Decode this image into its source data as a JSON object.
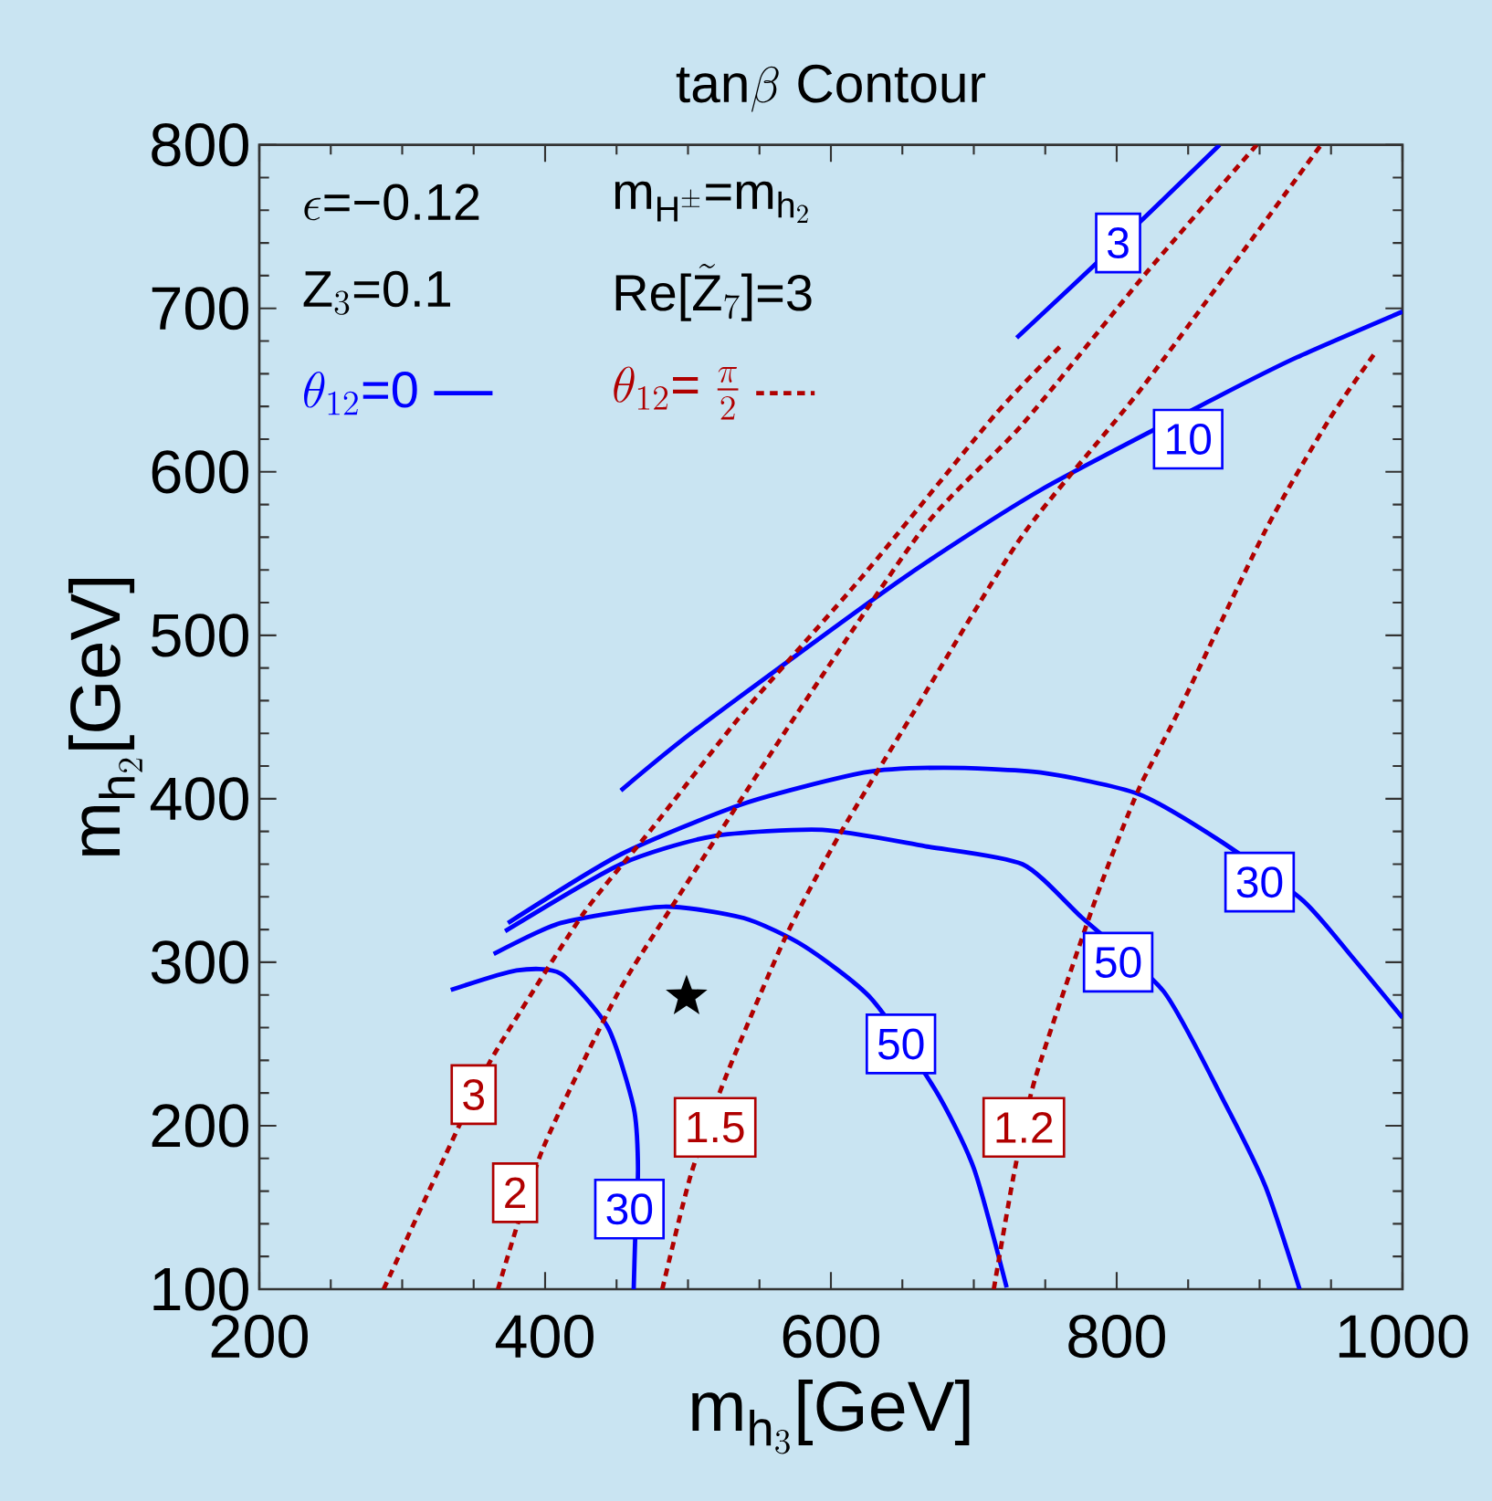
{
  "chart_data": {
    "type": "line",
    "title": "\\text{tan}\\beta\\text{ Contour}",
    "xlabel": "\\text{m}_{\\text{h}_{3}}\\text{[GeV]}",
    "ylabel": "\\text{m}_{\\text{h}_{2}}\\text{[GeV]}",
    "xlim": [
      200,
      1000
    ],
    "ylim": [
      100,
      800
    ],
    "xticks": [
      200,
      400,
      600,
      800,
      1000
    ],
    "yticks": [
      100,
      200,
      300,
      400,
      500,
      600,
      700,
      800
    ],
    "grid": false,
    "legend": "top left",
    "marker": "none",
    "series": [
      {
        "name": "\\theta_{12}\\text{=0}",
        "color": "#0000ff",
        "line_style": "solid",
        "x": [
          730,
          801,
          872
        ],
        "values": [
          682,
          740,
          800
        ]
      },
      {
        "color": "#0000ff",
        "line_style": "solid",
        "x": [
          453,
          508,
          649,
          747,
          871,
          926,
          1000
        ],
        "values": [
          405,
          444,
          534,
          589,
          646,
          670,
          698
        ]
      },
      {
        "color": "#0000ff",
        "line_style": "solid",
        "x": [
          334,
          380,
          411,
          444,
          462,
          465,
          463,
          462
        ],
        "values": [
          283,
          295,
          293,
          260,
          211,
          174,
          130,
          100
        ]
      },
      {
        "color": "#0000ff",
        "line_style": "solid",
        "x": [
          364,
          411,
          483,
          539,
          581,
          628,
          673,
          700,
          723
        ],
        "values": [
          305,
          324,
          334,
          327,
          310,
          278,
          222,
          174,
          101
        ]
      },
      {
        "color": "#0000ff",
        "line_style": "solid",
        "x": [
          372,
          453,
          517,
          594,
          666,
          734,
          776,
          833,
          875,
          904,
          928
        ],
        "values": [
          319,
          360,
          377,
          381,
          371,
          360,
          327,
          282,
          215,
          163,
          100
        ]
      },
      {
        "color": "#0000ff",
        "line_style": "solid",
        "x": [
          374,
          453,
          539,
          623,
          679,
          747,
          815,
          871,
          930,
          964,
          1000
        ],
        "values": [
          324,
          366,
          397,
          416,
          419,
          416,
          403,
          375,
          338,
          304,
          266
        ]
      },
      {
        "name": "\\theta_{12}\\text{= }\\frac{\\pi}{2}",
        "color": "#b00000",
        "line_style": "dashed",
        "x": [
          287,
          350,
          370,
          427,
          475,
          539,
          623,
          715,
          762
        ],
        "values": [
          100,
          219,
          252,
          330,
          382,
          453,
          537,
          635,
          678
        ]
      },
      {
        "color": "#b00000",
        "line_style": "dashed",
        "x": [
          367,
          398,
          449,
          488,
          577,
          666,
          734,
          820,
          898
        ],
        "values": [
          100,
          185,
          278,
          333,
          453,
          567,
          629,
          721,
          800
        ]
      },
      {
        "color": "#b00000",
        "line_style": "dashed",
        "x": [
          482,
          502,
          526,
          568,
          606,
          658,
          734,
          820,
          943
        ],
        "values": [
          100,
          170,
          229,
          315,
          378,
          453,
          561,
          654,
          800
        ]
      },
      {
        "color": "#b00000",
        "line_style": "dashed",
        "x": [
          714,
          728,
          743,
          785,
          815,
          843,
          904,
          948,
          981
        ],
        "values": [
          100,
          170,
          229,
          338,
          405,
          453,
          564,
          631,
          673
        ]
      },
      {
        "type": "scatter",
        "marker": "star",
        "color": "#000000",
        "x": [
          499
        ],
        "values": [
          279
        ]
      }
    ],
    "annotations": [
      "\\epsilon\\text{=−0.12}",
      "\\text{m}_{\\text{H}^{\\pm}}\\text{=m}_{\\text{h}_{2}}",
      "\\text{Z}_{3}\\text{=0.1}",
      "\\text{Re[}\\tilde{\\text{Z}}_{7}\\text{]=3}",
      {
        "text": "3",
        "x": 801,
        "y": 740
      },
      {
        "text": "10",
        "x": 850,
        "y": 620
      },
      {
        "text": "30",
        "x": 459,
        "y": 149
      },
      {
        "text": "50",
        "x": 649,
        "y": 250
      },
      {
        "text": "50",
        "x": 801,
        "y": 300
      },
      {
        "text": "30",
        "x": 900,
        "y": 349
      },
      {
        "text": "3",
        "x": 350,
        "y": 219
      },
      {
        "text": "2",
        "x": 379,
        "y": 159
      },
      {
        "text": "1.5",
        "x": 519,
        "y": 199
      },
      {
        "text": "1.2",
        "x": 735,
        "y": 199
      }
    ]
  }
}
